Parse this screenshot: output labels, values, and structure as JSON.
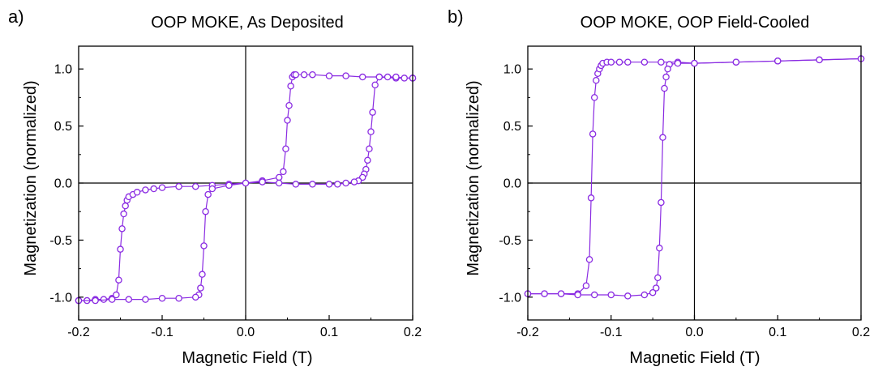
{
  "chart_data": [
    {
      "type": "scatter",
      "panel_label": "a)",
      "title": "OOP MOKE, As Deposited",
      "xlabel": "Magnetic Field (T)",
      "ylabel": "Magnetization (normalized)",
      "xlim": [
        -0.2,
        0.2
      ],
      "ylim": [
        -1.2,
        1.2
      ],
      "xticks": [
        "-0.2",
        "-0.1",
        "0.0",
        "0.1",
        "0.2"
      ],
      "yticks": [
        "-1.0",
        "-0.5",
        "0.0",
        "0.5",
        "1.0"
      ],
      "marker": "open-circle",
      "color": "#8A2BE2",
      "legend": "none",
      "grid": false,
      "series": [
        {
          "x": [
            -0.2,
            -0.19,
            -0.18,
            -0.17,
            -0.16,
            -0.155,
            -0.152,
            -0.15,
            -0.148,
            -0.146,
            -0.144,
            -0.142,
            -0.14,
            -0.135,
            -0.13,
            -0.12,
            -0.11,
            -0.1,
            -0.08,
            -0.06,
            -0.04,
            -0.02,
            0.0,
            0.02,
            0.04,
            0.045,
            0.048,
            0.05,
            0.052,
            0.054,
            0.056,
            0.058,
            0.06,
            0.07,
            0.08,
            0.1,
            0.12,
            0.14,
            0.16,
            0.18,
            0.2
          ],
          "y": [
            -1.03,
            -1.03,
            -1.02,
            -1.02,
            -1.01,
            -0.98,
            -0.85,
            -0.58,
            -0.4,
            -0.27,
            -0.2,
            -0.15,
            -0.12,
            -0.1,
            -0.08,
            -0.06,
            -0.05,
            -0.04,
            -0.03,
            -0.03,
            -0.02,
            -0.01,
            0.0,
            0.02,
            0.05,
            0.1,
            0.3,
            0.55,
            0.68,
            0.85,
            0.93,
            0.95,
            0.95,
            0.95,
            0.95,
            0.94,
            0.94,
            0.93,
            0.93,
            0.92,
            0.92
          ]
        },
        {
          "x": [
            0.2,
            0.19,
            0.18,
            0.17,
            0.16,
            0.155,
            0.152,
            0.15,
            0.148,
            0.146,
            0.144,
            0.142,
            0.14,
            0.135,
            0.13,
            0.12,
            0.11,
            0.1,
            0.08,
            0.06,
            0.04,
            0.02,
            0.0,
            -0.02,
            -0.04,
            -0.045,
            -0.048,
            -0.05,
            -0.052,
            -0.054,
            -0.056,
            -0.06,
            -0.08,
            -0.1,
            -0.12,
            -0.14,
            -0.16,
            -0.18,
            -0.2
          ],
          "y": [
            0.92,
            0.92,
            0.93,
            0.93,
            0.93,
            0.86,
            0.62,
            0.45,
            0.3,
            0.2,
            0.12,
            0.08,
            0.05,
            0.02,
            0.01,
            0.0,
            -0.01,
            -0.01,
            -0.01,
            -0.01,
            0.0,
            0.01,
            0.0,
            -0.02,
            -0.05,
            -0.1,
            -0.25,
            -0.55,
            -0.8,
            -0.92,
            -0.98,
            -1.0,
            -1.01,
            -1.01,
            -1.02,
            -1.02,
            -1.02,
            -1.03,
            -1.03
          ]
        }
      ]
    },
    {
      "type": "scatter",
      "panel_label": "b)",
      "title": "OOP MOKE, OOP Field-Cooled",
      "xlabel": "Magnetic Field (T)",
      "ylabel": "Magnetization (normalized)",
      "xlim": [
        -0.2,
        0.2
      ],
      "ylim": [
        -1.2,
        1.2
      ],
      "xticks": [
        "-0.2",
        "-0.1",
        "0.0",
        "0.1",
        "0.2"
      ],
      "yticks": [
        "-1.0",
        "-0.5",
        "0.0",
        "0.5",
        "1.0"
      ],
      "marker": "open-circle",
      "color": "#8A2BE2",
      "legend": "none",
      "grid": false,
      "series": [
        {
          "x": [
            -0.2,
            -0.18,
            -0.16,
            -0.14,
            -0.13,
            -0.126,
            -0.124,
            -0.122,
            -0.12,
            -0.118,
            -0.116,
            -0.114,
            -0.112,
            -0.11,
            -0.105,
            -0.1,
            -0.09,
            -0.08,
            -0.06,
            -0.04,
            -0.02,
            0.0,
            0.05,
            0.1,
            0.15,
            0.2
          ],
          "y": [
            -0.97,
            -0.97,
            -0.97,
            -0.97,
            -0.9,
            -0.67,
            -0.13,
            0.43,
            0.75,
            0.9,
            0.96,
            1.0,
            1.03,
            1.05,
            1.06,
            1.06,
            1.06,
            1.06,
            1.06,
            1.06,
            1.06,
            1.05,
            1.06,
            1.07,
            1.08,
            1.09
          ]
        },
        {
          "x": [
            0.2,
            0.15,
            0.1,
            0.05,
            0.0,
            -0.02,
            -0.03,
            -0.032,
            -0.034,
            -0.036,
            -0.038,
            -0.04,
            -0.042,
            -0.044,
            -0.046,
            -0.05,
            -0.06,
            -0.08,
            -0.1,
            -0.12,
            -0.14,
            -0.16,
            -0.18,
            -0.2
          ],
          "y": [
            1.09,
            1.08,
            1.07,
            1.06,
            1.05,
            1.05,
            1.04,
            1.0,
            0.93,
            0.83,
            0.4,
            -0.17,
            -0.57,
            -0.83,
            -0.92,
            -0.96,
            -0.98,
            -0.99,
            -0.98,
            -0.98,
            -0.98,
            -0.97,
            -0.97,
            -0.97
          ]
        }
      ]
    }
  ]
}
